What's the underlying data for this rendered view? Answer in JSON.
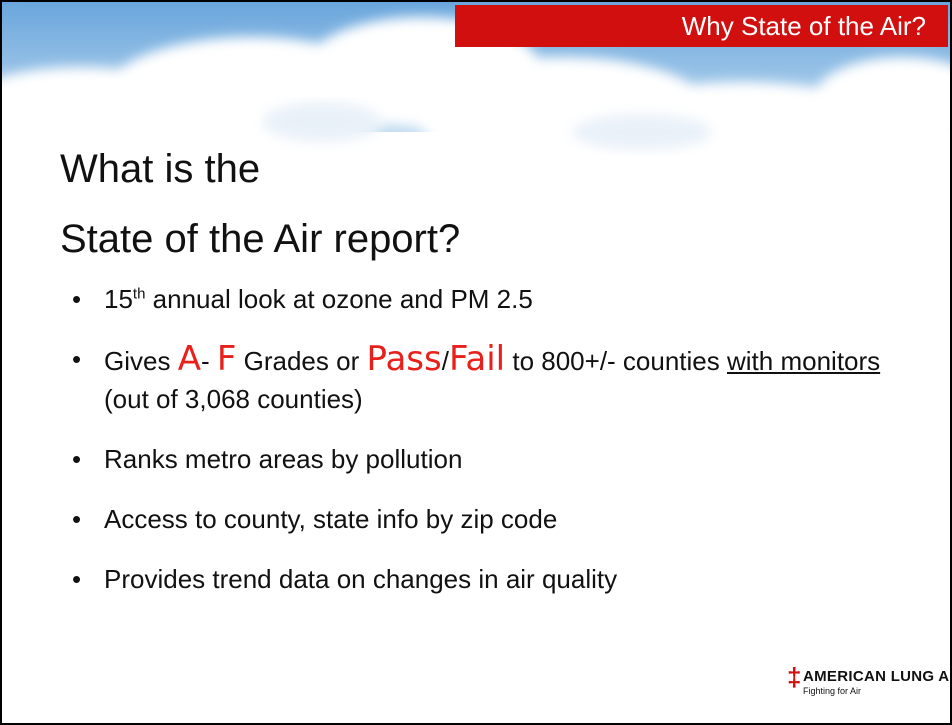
{
  "header": {
    "tag": "Why State of the Air?"
  },
  "title": {
    "lines": [
      "What is the",
      "State of the Air report?"
    ]
  },
  "bullets": [
    {
      "runs": [
        {
          "text": "15"
        },
        {
          "text": "th",
          "style": "sup"
        },
        {
          "text": " annual look at ozone and PM 2.5"
        }
      ]
    },
    {
      "runs": [
        {
          "text": "Gives "
        },
        {
          "text": "A",
          "style": "grade"
        },
        {
          "text": "- "
        },
        {
          "text": "F",
          "style": "grade"
        },
        {
          "text": " Grades or "
        },
        {
          "text": "Pass",
          "style": "grade"
        },
        {
          "text": "/"
        },
        {
          "text": "Fail",
          "style": "grade"
        },
        {
          "text": " to 800+/- counties "
        },
        {
          "text": "with monitors ",
          "style": "underline"
        },
        {
          "text": "(out of 3,068 counties)"
        }
      ]
    },
    {
      "runs": [
        {
          "text": "Ranks metro areas by pollution"
        }
      ]
    },
    {
      "runs": [
        {
          "text": "Access to county, state info by zip code"
        }
      ]
    },
    {
      "runs": [
        {
          "text": "Provides trend data on changes in air quality"
        }
      ]
    }
  ],
  "logo": {
    "name": "AMERICAN LUNG ASSOCIATION.",
    "tagline": "Fighting for Air"
  }
}
